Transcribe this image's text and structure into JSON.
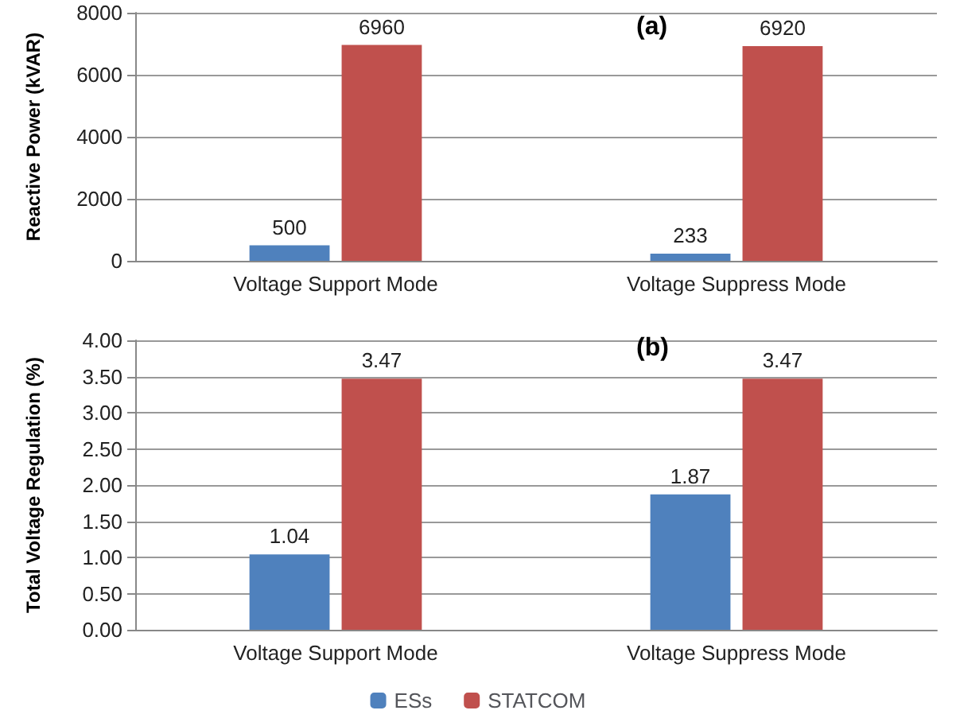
{
  "chart_data": [
    {
      "type": "bar",
      "title": "(a)",
      "ylabel": "Reactive Power (kVAR)",
      "categories": [
        "Voltage Support Mode",
        "Voltage Suppress Mode"
      ],
      "series": [
        {
          "color": "#4f81bd",
          "values": [
            500,
            233
          ]
        },
        {
          "color": "#c0504d",
          "values": [
            6960,
            6920
          ]
        }
      ],
      "ylim": [
        0,
        8000
      ],
      "yticks": [
        0,
        2000,
        4000,
        6000,
        8000
      ],
      "grid": "y",
      "data_labels": true,
      "legend": false
    },
    {
      "type": "bar",
      "title": "(b)",
      "ylabel": "Total Voltage Regulation (%)",
      "categories": [
        "Voltage Support Mode",
        "Voltage Suppress Mode"
      ],
      "series": [
        {
          "name": "ESs",
          "color": "#4f81bd",
          "values": [
            1.04,
            1.87
          ]
        },
        {
          "name": "STATCOM",
          "color": "#c0504d",
          "values": [
            3.47,
            3.47
          ]
        }
      ],
      "ylim": [
        0,
        4
      ],
      "yticks": [
        {
          "value": 0,
          "label": "0.00"
        },
        {
          "value": 0.5,
          "label": "0.50"
        },
        {
          "value": 1,
          "label": "1.00"
        },
        {
          "value": 1.5,
          "label": "1.50"
        },
        {
          "value": 2,
          "label": "2.00"
        },
        {
          "value": 2.5,
          "label": "2.50"
        },
        {
          "value": 3,
          "label": "3.00"
        },
        {
          "value": 3.5,
          "label": "3.50"
        },
        {
          "value": 4,
          "label": "4.00"
        }
      ],
      "grid": "y",
      "data_labels": true,
      "legend": "bottom"
    }
  ]
}
